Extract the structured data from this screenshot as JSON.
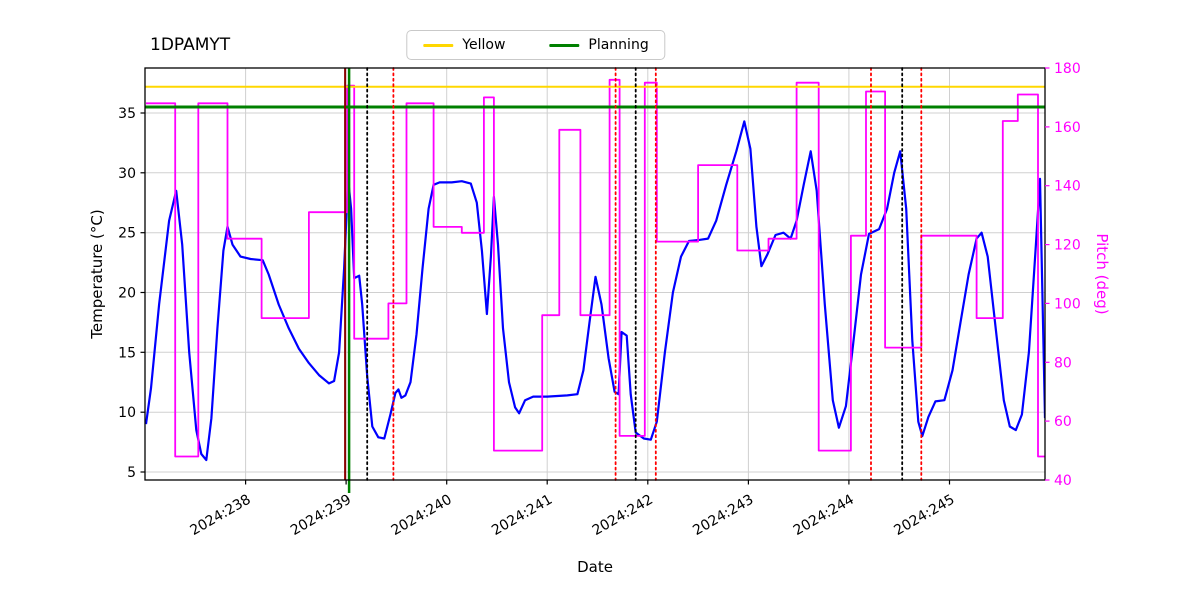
{
  "title": "1DPAMYT",
  "legend": {
    "items": [
      {
        "label": "Yellow",
        "color": "#ffd700"
      },
      {
        "label": "Planning",
        "color": "#008000"
      }
    ]
  },
  "axes": {
    "x": {
      "label": "Date",
      "min": 237.0,
      "max": 245.95,
      "ticks": [
        238,
        239,
        240,
        241,
        242,
        243,
        244,
        245
      ],
      "tick_labels": [
        "2024:238",
        "2024:239",
        "2024:240",
        "2024:241",
        "2024:242",
        "2024:243",
        "2024:244",
        "2024:245"
      ]
    },
    "y_left": {
      "label": "Temperature (°C)",
      "min": 4.33,
      "max": 38.76,
      "ticks": [
        5,
        10,
        15,
        20,
        25,
        30,
        35
      ],
      "color": "#000000"
    },
    "y_right": {
      "label": "Pitch (deg)",
      "min": 40,
      "max": 180,
      "ticks": [
        40,
        60,
        80,
        100,
        120,
        140,
        160,
        180
      ],
      "color": "#ff00ff"
    }
  },
  "chart_data": {
    "type": "line",
    "grid": true,
    "legend_position": "top-center",
    "series": [
      {
        "name": "Temperature",
        "axis": "left",
        "color": "#0000ff",
        "width": 2.2,
        "mode": "linear",
        "points": [
          [
            237.01,
            9
          ],
          [
            237.06,
            12
          ],
          [
            237.14,
            19
          ],
          [
            237.24,
            26
          ],
          [
            237.31,
            28.5
          ],
          [
            237.37,
            24
          ],
          [
            237.44,
            15
          ],
          [
            237.51,
            8.5
          ],
          [
            237.56,
            6.5
          ],
          [
            237.61,
            6
          ],
          [
            237.66,
            9.5
          ],
          [
            237.72,
            17
          ],
          [
            237.78,
            23.5
          ],
          [
            237.82,
            25.5
          ],
          [
            237.87,
            24
          ],
          [
            237.95,
            23
          ],
          [
            238.05,
            22.8
          ],
          [
            238.17,
            22.7
          ],
          [
            238.23,
            21.5
          ],
          [
            238.33,
            19
          ],
          [
            238.43,
            17
          ],
          [
            238.53,
            15.3
          ],
          [
            238.63,
            14.1
          ],
          [
            238.73,
            13.1
          ],
          [
            238.83,
            12.4
          ],
          [
            238.88,
            12.6
          ],
          [
            238.93,
            15
          ],
          [
            238.98,
            22
          ],
          [
            239.02,
            29.5
          ],
          [
            239.05,
            27
          ],
          [
            239.08,
            21.2
          ],
          [
            239.13,
            21.4
          ],
          [
            239.16,
            19
          ],
          [
            239.21,
            13
          ],
          [
            239.26,
            8.8
          ],
          [
            239.32,
            7.9
          ],
          [
            239.38,
            7.8
          ],
          [
            239.44,
            9.8
          ],
          [
            239.49,
            11.6
          ],
          [
            239.52,
            11.9
          ],
          [
            239.55,
            11.2
          ],
          [
            239.59,
            11.4
          ],
          [
            239.64,
            12.5
          ],
          [
            239.7,
            16.5
          ],
          [
            239.76,
            22
          ],
          [
            239.82,
            27
          ],
          [
            239.87,
            29
          ],
          [
            239.93,
            29.2
          ],
          [
            240.05,
            29.2
          ],
          [
            240.15,
            29.3
          ],
          [
            240.24,
            29.1
          ],
          [
            240.3,
            27.5
          ],
          [
            240.35,
            23.5
          ],
          [
            240.4,
            18.2
          ],
          [
            240.44,
            23
          ],
          [
            240.47,
            28
          ],
          [
            240.51,
            24
          ],
          [
            240.56,
            17
          ],
          [
            240.62,
            12.5
          ],
          [
            240.68,
            10.4
          ],
          [
            240.72,
            9.9
          ],
          [
            240.78,
            11
          ],
          [
            240.86,
            11.3
          ],
          [
            241.0,
            11.3
          ],
          [
            241.2,
            11.4
          ],
          [
            241.3,
            11.5
          ],
          [
            241.36,
            13.5
          ],
          [
            241.42,
            17.5
          ],
          [
            241.48,
            21.3
          ],
          [
            241.54,
            19
          ],
          [
            241.61,
            14.5
          ],
          [
            241.67,
            11.7
          ],
          [
            241.71,
            11.5
          ],
          [
            241.74,
            16.7
          ],
          [
            241.79,
            16.4
          ],
          [
            241.83,
            11.5
          ],
          [
            241.88,
            8.3
          ],
          [
            241.96,
            7.8
          ],
          [
            242.03,
            7.7
          ],
          [
            242.09,
            9.2
          ],
          [
            242.17,
            15
          ],
          [
            242.25,
            20
          ],
          [
            242.33,
            23
          ],
          [
            242.41,
            24.3
          ],
          [
            242.52,
            24.4
          ],
          [
            242.6,
            24.5
          ],
          [
            242.68,
            26
          ],
          [
            242.78,
            29
          ],
          [
            242.88,
            31.8
          ],
          [
            242.96,
            34.3
          ],
          [
            243.02,
            32
          ],
          [
            243.08,
            25.5
          ],
          [
            243.13,
            22.2
          ],
          [
            243.19,
            23.2
          ],
          [
            243.27,
            24.8
          ],
          [
            243.35,
            25
          ],
          [
            243.42,
            24.5
          ],
          [
            243.48,
            26
          ],
          [
            243.55,
            29
          ],
          [
            243.62,
            31.8
          ],
          [
            243.68,
            28.5
          ],
          [
            243.76,
            19
          ],
          [
            243.84,
            11
          ],
          [
            243.9,
            8.7
          ],
          [
            243.97,
            10.5
          ],
          [
            244.04,
            15.5
          ],
          [
            244.12,
            21.5
          ],
          [
            244.2,
            24.9
          ],
          [
            244.3,
            25.3
          ],
          [
            244.38,
            27
          ],
          [
            244.45,
            30
          ],
          [
            244.51,
            31.8
          ],
          [
            244.57,
            27
          ],
          [
            244.63,
            16
          ],
          [
            244.69,
            9.2
          ],
          [
            244.73,
            8
          ],
          [
            244.79,
            9.6
          ],
          [
            244.86,
            10.9
          ],
          [
            244.95,
            11
          ],
          [
            245.03,
            13.5
          ],
          [
            245.11,
            17.5
          ],
          [
            245.19,
            21.5
          ],
          [
            245.27,
            24.5
          ],
          [
            245.32,
            25
          ],
          [
            245.38,
            23
          ],
          [
            245.46,
            17
          ],
          [
            245.54,
            11
          ],
          [
            245.6,
            8.8
          ],
          [
            245.66,
            8.5
          ],
          [
            245.72,
            9.8
          ],
          [
            245.79,
            15
          ],
          [
            245.86,
            24
          ],
          [
            245.9,
            29.5
          ],
          [
            245.95,
            9.5
          ]
        ]
      },
      {
        "name": "Pitch",
        "axis": "right",
        "color": "#ff00ff",
        "width": 1.8,
        "mode": "step",
        "points": [
          [
            237.01,
            168
          ],
          [
            237.3,
            48
          ],
          [
            237.53,
            168
          ],
          [
            237.82,
            122
          ],
          [
            238.16,
            95
          ],
          [
            238.63,
            131
          ],
          [
            239.01,
            174
          ],
          [
            239.08,
            88
          ],
          [
            239.42,
            100
          ],
          [
            239.6,
            168
          ],
          [
            239.87,
            126
          ],
          [
            240.15,
            124
          ],
          [
            240.37,
            170
          ],
          [
            240.47,
            50
          ],
          [
            240.95,
            96
          ],
          [
            241.12,
            159
          ],
          [
            241.33,
            96
          ],
          [
            241.62,
            176
          ],
          [
            241.72,
            55
          ],
          [
            241.97,
            175
          ],
          [
            242.09,
            121
          ],
          [
            242.5,
            147
          ],
          [
            242.89,
            118
          ],
          [
            243.2,
            122
          ],
          [
            243.48,
            175
          ],
          [
            243.7,
            50
          ],
          [
            244.02,
            123
          ],
          [
            244.17,
            172
          ],
          [
            244.36,
            85
          ],
          [
            244.72,
            123
          ],
          [
            245.27,
            95
          ],
          [
            245.53,
            162
          ],
          [
            245.68,
            171
          ],
          [
            245.88,
            48
          ]
        ]
      }
    ],
    "hlines": [
      {
        "name": "Yellow",
        "axis": "left",
        "y": 37.2,
        "color": "#ffd700",
        "style": "solid",
        "width": 2
      },
      {
        "name": "Planning",
        "axis": "left",
        "y": 35.5,
        "color": "#008000",
        "style": "solid",
        "width": 3
      }
    ],
    "vlines": [
      {
        "x": 238.99,
        "color": "#8b0000",
        "style": "solid",
        "width": 2,
        "extend": false
      },
      {
        "x": 239.03,
        "color": "#008000",
        "style": "solid",
        "width": 2.5,
        "extend": true
      },
      {
        "x": 239.21,
        "color": "#000000",
        "style": "dotted",
        "width": 1.8
      },
      {
        "x": 239.47,
        "color": "#ff0000",
        "style": "dotted",
        "width": 1.8
      },
      {
        "x": 241.68,
        "color": "#ff0000",
        "style": "dotted",
        "width": 1.8
      },
      {
        "x": 241.88,
        "color": "#000000",
        "style": "dotted",
        "width": 1.8
      },
      {
        "x": 242.08,
        "color": "#ff0000",
        "style": "dotted",
        "width": 1.8
      },
      {
        "x": 244.22,
        "color": "#ff0000",
        "style": "dotted",
        "width": 1.8
      },
      {
        "x": 244.53,
        "color": "#000000",
        "style": "dotted",
        "width": 1.8
      },
      {
        "x": 244.72,
        "color": "#ff0000",
        "style": "dotted",
        "width": 1.8
      }
    ]
  }
}
